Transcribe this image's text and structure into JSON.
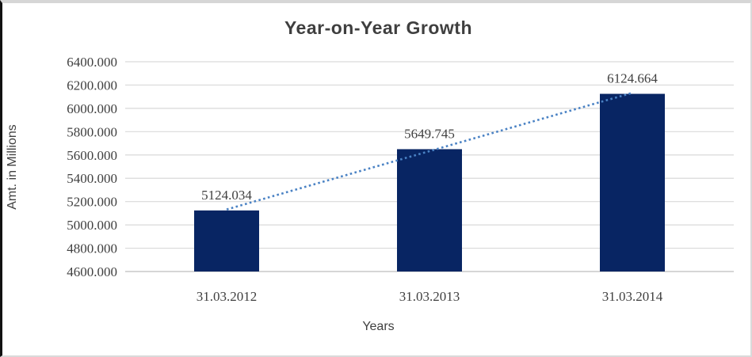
{
  "chart_data": {
    "type": "bar",
    "title": "Year-on-Year Growth",
    "xlabel": "Years",
    "ylabel": "Amt. in Millions",
    "categories": [
      "31.03.2012",
      "31.03.2013",
      "31.03.2014"
    ],
    "values": [
      5124.034,
      5649.745,
      6124.664
    ],
    "data_labels": [
      "5124.034",
      "5649.745",
      "6124.664"
    ],
    "ylim": [
      4600,
      6400
    ],
    "ytick_step": 200,
    "ytick_decimals": 3,
    "grid": "horizontal",
    "legend": "none",
    "trendline": {
      "type": "linear",
      "style": "dotted"
    },
    "colors": {
      "bar": "#082563",
      "trendline": "#4a82c4",
      "gridline": "#d9d9d9",
      "axis_line": "#c9c9c9",
      "tick_text": "#404040",
      "title_text": "#3f3f3f"
    }
  }
}
